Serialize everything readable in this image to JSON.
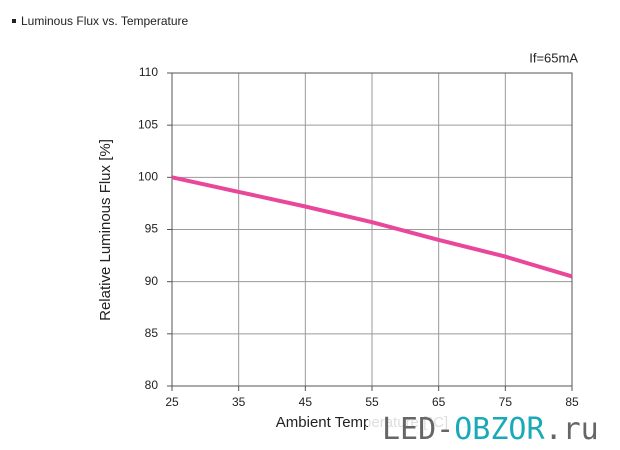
{
  "chart_data": {
    "type": "line",
    "title": "Luminous Flux vs. Temperature",
    "annotation": "If=65mA",
    "x_label": "Ambient Temperature [°C]",
    "y_label": "Relative Luminous Flux [%]",
    "x": [
      25,
      35,
      45,
      55,
      65,
      75,
      85
    ],
    "series": [
      {
        "name": "If=65mA",
        "color": "#e8479a",
        "values": [
          100,
          98.6,
          97.2,
          95.7,
          94.0,
          92.4,
          90.5
        ]
      }
    ],
    "xlim": [
      25,
      85
    ],
    "xticks": [
      25,
      35,
      45,
      55,
      65,
      75,
      85
    ],
    "ylim": [
      80,
      110
    ],
    "yticks": [
      80,
      85,
      90,
      95,
      100,
      105,
      110
    ],
    "grid": true
  },
  "watermark": [
    "LED-",
    "OBZOR",
    ".ru"
  ]
}
